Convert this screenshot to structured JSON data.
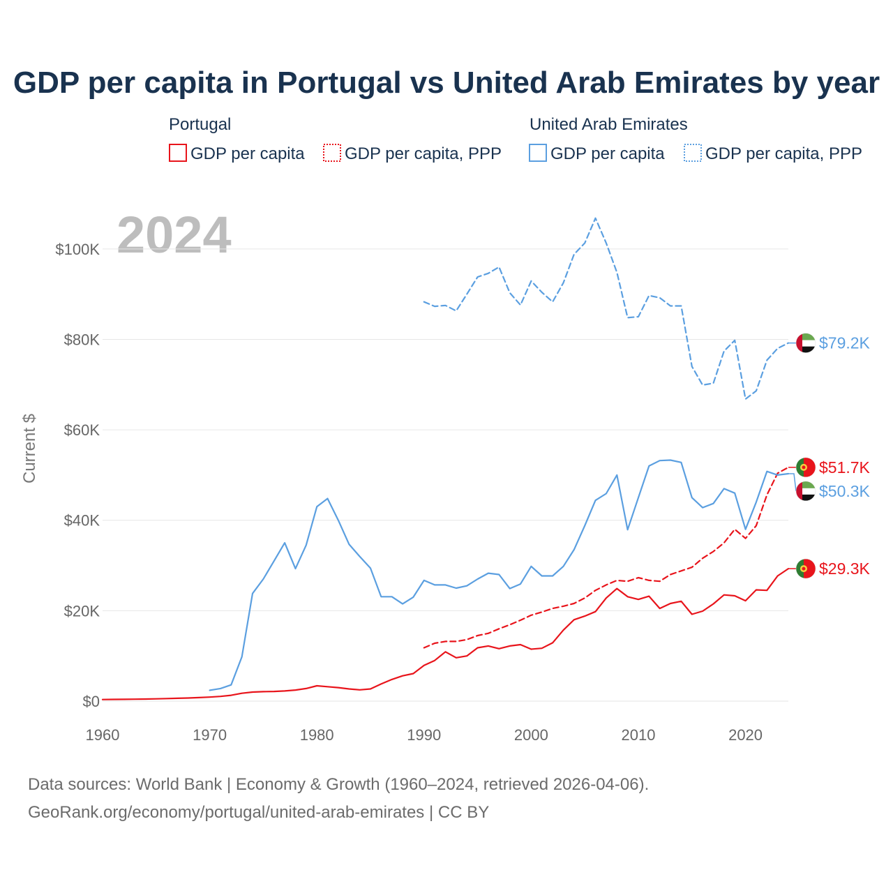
{
  "chart_data": {
    "type": "line",
    "title": "GDP per capita in Portugal vs United Arab Emirates by year",
    "year_watermark": "2024",
    "xlabel": "",
    "ylabel": "Current $",
    "xlim": [
      1960,
      2024
    ],
    "ylim": [
      0,
      110000
    ],
    "x_ticks": [
      1960,
      1970,
      1980,
      1990,
      2000,
      2010,
      2020
    ],
    "x_tick_labels": [
      "1960",
      "1970",
      "1980",
      "1990",
      "2000",
      "2010",
      "2020"
    ],
    "y_ticks": [
      0,
      20000,
      40000,
      60000,
      80000,
      100000
    ],
    "y_tick_labels": [
      "$0",
      "$20K",
      "$40K",
      "$60K",
      "$80K",
      "$100K"
    ],
    "grid": true,
    "legend": {
      "placement": "top",
      "groups": [
        {
          "title": "Portugal",
          "color": "#e8141b",
          "entries": [
            "GDP per capita",
            "GDP per capita, PPP"
          ]
        },
        {
          "title": "United Arab Emirates",
          "color": "#5b9fe0",
          "entries": [
            "GDP per capita",
            "GDP per capita, PPP"
          ]
        }
      ]
    },
    "series": [
      {
        "name": "Portugal GDP per capita",
        "country": "Portugal",
        "color": "#e8141b",
        "dashed": false,
        "x": [
          1960,
          1961,
          1962,
          1963,
          1964,
          1965,
          1966,
          1967,
          1968,
          1969,
          1970,
          1971,
          1972,
          1973,
          1974,
          1975,
          1976,
          1977,
          1978,
          1979,
          1980,
          1981,
          1982,
          1983,
          1984,
          1985,
          1986,
          1987,
          1988,
          1989,
          1990,
          1991,
          1992,
          1993,
          1994,
          1995,
          1996,
          1997,
          1998,
          1999,
          2000,
          2001,
          2002,
          2003,
          2004,
          2005,
          2006,
          2007,
          2008,
          2009,
          2010,
          2011,
          2012,
          2013,
          2014,
          2015,
          2016,
          2017,
          2018,
          2019,
          2020,
          2021,
          2022,
          2023,
          2024
        ],
        "values": [
          360,
          380,
          400,
          430,
          470,
          510,
          570,
          630,
          700,
          780,
          900,
          1050,
          1300,
          1750,
          2000,
          2100,
          2150,
          2250,
          2450,
          2800,
          3400,
          3200,
          3000,
          2700,
          2500,
          2700,
          3800,
          4800,
          5600,
          6100,
          7900,
          9000,
          10900,
          9600,
          10000,
          11800,
          12200,
          11600,
          12200,
          12500,
          11500,
          11700,
          12900,
          15700,
          18000,
          18800,
          19800,
          22800,
          24900,
          23100,
          22500,
          23200,
          20500,
          21600,
          22100,
          19200,
          19900,
          21500,
          23500,
          23300,
          22200,
          24600,
          24500,
          27700,
          29300
        ],
        "end_label": "$29.3K"
      },
      {
        "name": "Portugal GDP per capita, PPP",
        "country": "Portugal",
        "color": "#e8141b",
        "dashed": true,
        "x": [
          1990,
          1991,
          1992,
          1993,
          1994,
          1995,
          1996,
          1997,
          1998,
          1999,
          2000,
          2001,
          2002,
          2003,
          2004,
          2005,
          2006,
          2007,
          2008,
          2009,
          2010,
          2011,
          2012,
          2013,
          2014,
          2015,
          2016,
          2017,
          2018,
          2019,
          2020,
          2021,
          2022,
          2023,
          2024
        ],
        "values": [
          11800,
          12800,
          13200,
          13200,
          13600,
          14500,
          15000,
          16000,
          16900,
          17900,
          19000,
          19700,
          20500,
          21000,
          21600,
          22800,
          24500,
          25700,
          26700,
          26500,
          27300,
          26700,
          26500,
          28000,
          28800,
          29600,
          31600,
          33100,
          35000,
          38000,
          36000,
          38800,
          45600,
          50400,
          51700
        ],
        "end_label": "$51.7K"
      },
      {
        "name": "United Arab Emirates GDP per capita",
        "country": "United Arab Emirates",
        "color": "#5b9fe0",
        "dashed": false,
        "x": [
          1970,
          1971,
          1972,
          1973,
          1974,
          1975,
          1976,
          1977,
          1978,
          1979,
          1980,
          1981,
          1982,
          1983,
          1984,
          1985,
          1986,
          1987,
          1988,
          1989,
          1990,
          1991,
          1992,
          1993,
          1994,
          1995,
          1996,
          1997,
          1998,
          1999,
          2000,
          2001,
          2002,
          2003,
          2004,
          2005,
          2006,
          2007,
          2008,
          2009,
          2010,
          2011,
          2012,
          2013,
          2014,
          2015,
          2016,
          2017,
          2018,
          2019,
          2020,
          2021,
          2022,
          2023,
          2024
        ],
        "values": [
          2400,
          2800,
          3600,
          9800,
          23800,
          27000,
          31000,
          35000,
          29300,
          34500,
          43000,
          44800,
          40000,
          34700,
          32000,
          29400,
          23100,
          23100,
          21500,
          23000,
          26700,
          25700,
          25700,
          25000,
          25500,
          27000,
          28300,
          28000,
          24900,
          25900,
          29800,
          27700,
          27700,
          29800,
          33500,
          38800,
          44400,
          45900,
          50000,
          37900,
          45000,
          52000,
          53200,
          53300,
          52800,
          45000,
          42800,
          43700,
          47000,
          46000,
          38000,
          44000,
          50800,
          50000,
          50300
        ],
        "end_label": "$50.3K"
      },
      {
        "name": "United Arab Emirates GDP per capita, PPP",
        "country": "United Arab Emirates",
        "color": "#5b9fe0",
        "dashed": true,
        "x": [
          1990,
          1991,
          1992,
          1993,
          1994,
          1995,
          1996,
          1997,
          1998,
          1999,
          2000,
          2001,
          2002,
          2003,
          2004,
          2005,
          2006,
          2007,
          2008,
          2009,
          2010,
          2011,
          2012,
          2013,
          2014,
          2015,
          2016,
          2017,
          2018,
          2019,
          2020,
          2021,
          2022,
          2023,
          2024
        ],
        "values": [
          88300,
          87300,
          87500,
          86300,
          90000,
          93800,
          94600,
          96000,
          90300,
          87600,
          92900,
          90400,
          88300,
          92500,
          98800,
          101300,
          106800,
          101300,
          94800,
          84800,
          85000,
          89700,
          89200,
          87400,
          87400,
          74000,
          69900,
          70300,
          77400,
          79800,
          66800,
          68600,
          75400,
          78000,
          79200
        ],
        "end_label": "$79.2K"
      }
    ],
    "source_lines": [
      "Data sources: World Bank | Economy & Growth (1960–2024, retrieved 2026-04-06).",
      "GeoRank.org/economy/portugal/united-arab-emirates | CC BY"
    ]
  }
}
